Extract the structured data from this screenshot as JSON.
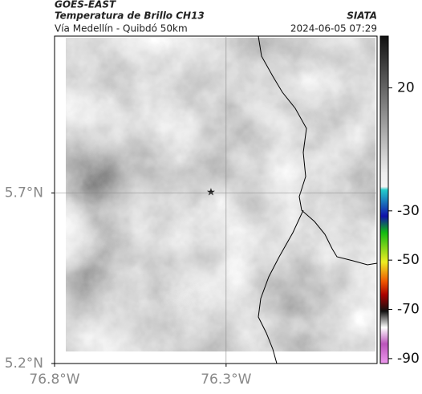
{
  "header": {
    "title": "GOES-EAST",
    "subtitle": "Temperatura de Brillo CH13",
    "region": "Vía Medellín - Quibdó 50km",
    "source": "SIATA",
    "datetime": "2024-06-05 07:29"
  },
  "map": {
    "xlim": [
      -76.8,
      -75.86
    ],
    "ylim": [
      5.2,
      6.16
    ],
    "xticks": [
      {
        "value": -76.8,
        "label": "76.8°W"
      },
      {
        "value": -76.3,
        "label": "76.3°W"
      }
    ],
    "yticks": [
      {
        "value": 5.7,
        "label": "5.7°N"
      },
      {
        "value": 5.2,
        "label": "5.2°N"
      }
    ],
    "grid": true
  },
  "colorbar": {
    "lim": [
      -92,
      41
    ],
    "ticks": [
      20,
      -30,
      -50,
      -70,
      -90
    ]
  }
}
